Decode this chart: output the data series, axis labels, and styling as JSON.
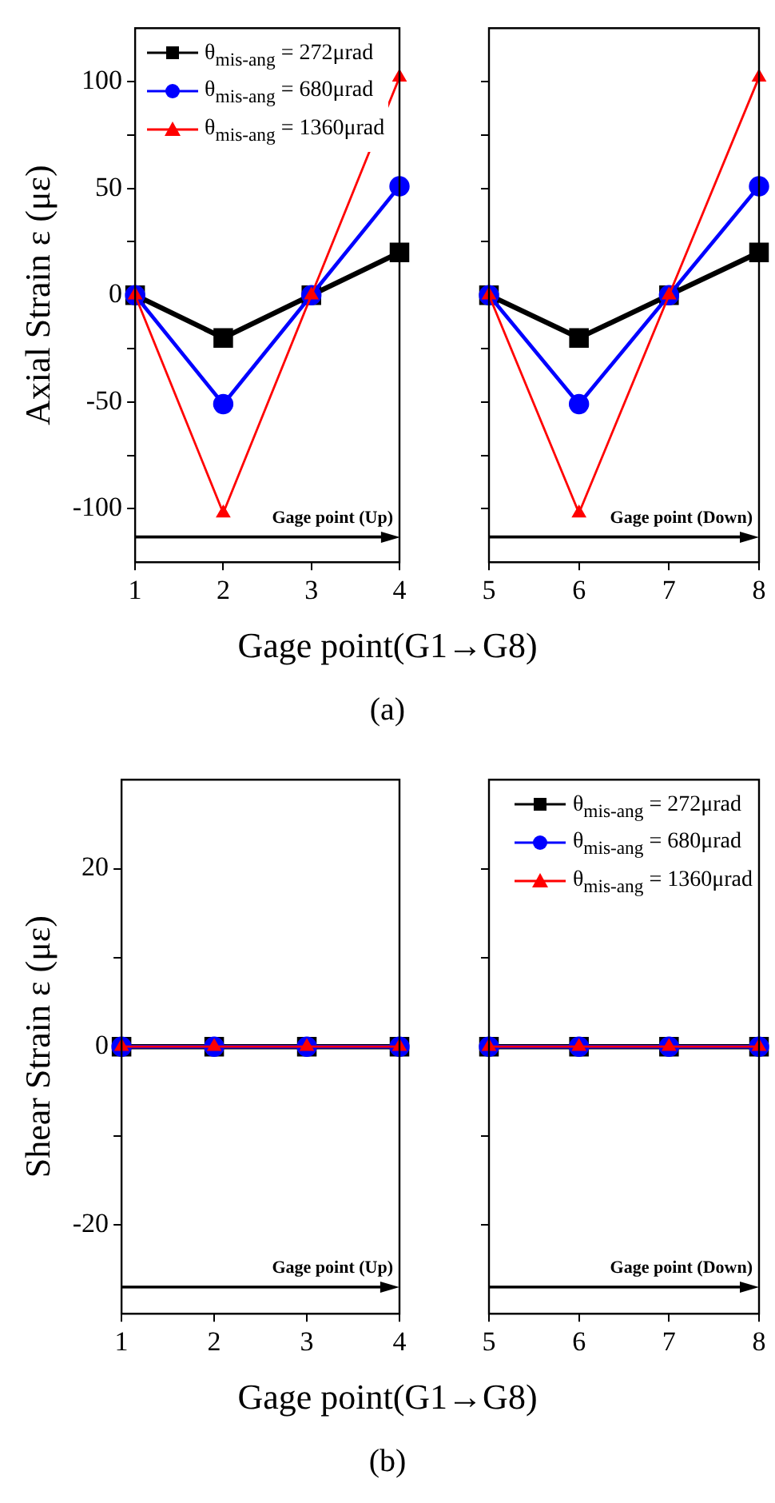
{
  "chart_data": [
    {
      "type": "line",
      "ylabel": "Axial Strain ε (με)",
      "xlabel": "Gage point(G1→G8)",
      "annotations": [
        "(a)"
      ],
      "x": [
        1,
        2,
        3,
        4
      ],
      "xlim": [
        1,
        4
      ],
      "xticks": [
        1,
        2,
        3,
        4
      ],
      "ylim": [
        -125,
        125
      ],
      "yticks": [
        -100,
        {
          "value": -75,
          "label": null
        },
        -50,
        {
          "value": -25,
          "label": null
        },
        0,
        {
          "value": 25,
          "label": null
        },
        50,
        {
          "value": 75,
          "label": null
        },
        100
      ],
      "grid": false,
      "legend": "top left",
      "ref_lines": [
        {
          "axis": "y",
          "value": -113,
          "label": "Gage point (Up)",
          "color": "#000000"
        }
      ],
      "series": [
        {
          "name": "θ$_{mis-ang}$ = 272μrad",
          "color": "#000000",
          "marker": "square",
          "values": [
            0,
            -20,
            0,
            20
          ]
        },
        {
          "name": "θ$_{mis-ang}$ = 680μrad",
          "color": "#0000ff",
          "marker": "circle",
          "values": [
            0,
            -51,
            0,
            51
          ]
        },
        {
          "name": "θ$_{mis-ang}$ = 1360μrad",
          "color": "#ff0000",
          "marker": "triangle",
          "values": [
            0,
            -102,
            0,
            102
          ]
        }
      ]
    },
    {
      "type": "line",
      "x": [
        5,
        6,
        7,
        8
      ],
      "xlim": [
        5,
        8
      ],
      "xticks": [
        5,
        6,
        7,
        8
      ],
      "ylim": [
        -125,
        125
      ],
      "yticks": [
        -100,
        {
          "value": -75,
          "label": null
        },
        -50,
        {
          "value": -25,
          "label": null
        },
        0,
        {
          "value": 25,
          "label": null
        },
        50,
        {
          "value": 75,
          "label": null
        },
        100
      ],
      "grid": false,
      "tick_labels": "x",
      "ref_lines": [
        {
          "axis": "y",
          "value": -113,
          "label": "Gage point (Down)",
          "color": "#000000"
        }
      ],
      "series": [
        {
          "color": "#000000",
          "marker": "square",
          "values": [
            0,
            -20,
            0,
            20
          ]
        },
        {
          "color": "#0000ff",
          "marker": "circle",
          "values": [
            0,
            -51,
            0,
            51
          ]
        },
        {
          "color": "#ff0000",
          "marker": "triangle",
          "values": [
            0,
            -102,
            0,
            102
          ]
        }
      ]
    },
    {
      "type": "line",
      "ylabel": "Shear Strain ε (με)",
      "xlabel": "Gage point(G1→G8)",
      "annotations": [
        "(b)"
      ],
      "x": [
        1,
        2,
        3,
        4
      ],
      "xlim": [
        1,
        4
      ],
      "xticks": [
        1,
        2,
        3,
        4
      ],
      "ylim": [
        -30,
        30
      ],
      "yticks": [
        -20,
        {
          "value": -10,
          "label": null
        },
        0,
        {
          "value": 10,
          "label": null
        },
        20
      ],
      "grid": false,
      "ref_lines": [
        {
          "axis": "y",
          "value": -27,
          "label": "Gage point (Up)",
          "color": "#000000"
        }
      ],
      "series": [
        {
          "color": "#000000",
          "marker": "square",
          "values": [
            0,
            0,
            0,
            0
          ]
        },
        {
          "color": "#0000ff",
          "marker": "circle",
          "values": [
            0,
            0,
            0,
            0
          ]
        },
        {
          "color": "#ff0000",
          "marker": "triangle",
          "values": [
            0,
            0,
            0,
            0
          ]
        }
      ]
    },
    {
      "type": "line",
      "x": [
        5,
        6,
        7,
        8
      ],
      "xlim": [
        5,
        8
      ],
      "xticks": [
        5,
        6,
        7,
        8
      ],
      "ylim": [
        -30,
        30
      ],
      "yticks": [
        -20,
        {
          "value": -10,
          "label": null
        },
        0,
        {
          "value": 10,
          "label": null
        },
        20
      ],
      "grid": false,
      "tick_labels": "x",
      "legend": "top right",
      "ref_lines": [
        {
          "axis": "y",
          "value": -27,
          "label": "Gage point (Down)",
          "color": "#000000"
        }
      ],
      "series": [
        {
          "name": "θ$_{mis-ang}$ = 272μrad",
          "color": "#000000",
          "marker": "square",
          "values": [
            0,
            0,
            0,
            0
          ]
        },
        {
          "name": "θ$_{mis-ang}$ = 680μrad",
          "color": "#0000ff",
          "marker": "circle",
          "values": [
            0,
            0,
            0,
            0
          ]
        },
        {
          "name": "θ$_{mis-ang}$ = 1360μrad",
          "color": "#ff0000",
          "marker": "triangle",
          "values": [
            0,
            0,
            0,
            0
          ]
        }
      ]
    }
  ]
}
